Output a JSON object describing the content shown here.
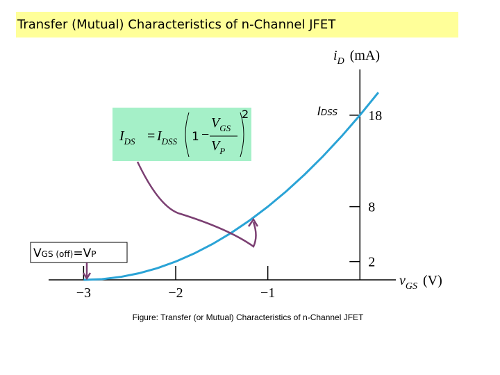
{
  "title": "Transfer (Mutual) Characteristics of n-Channel JFET",
  "chart_data": {
    "type": "line",
    "x": [
      -3,
      -2.8,
      -2.6,
      -2.4,
      -2.2,
      -2,
      -1.8,
      -1.6,
      -1.4,
      -1.2,
      -1,
      -0.8,
      -0.6,
      -0.4,
      -0.2,
      0,
      0.2
    ],
    "series": [
      {
        "color": "#2aa3d6",
        "values": [
          0,
          0.08,
          0.32,
          0.72,
          1.28,
          2,
          2.88,
          3.92,
          5.12,
          6.48,
          8,
          9.68,
          11.52,
          13.52,
          15.68,
          18,
          20.48
        ]
      }
    ],
    "xlim": [
      -3.38,
      0.39
    ],
    "ylim": [
      0,
      23
    ],
    "xticks": [
      {
        "value": -3,
        "label": "−3"
      },
      {
        "value": -2,
        "label": "−2"
      },
      {
        "value": -1,
        "label": "−1"
      }
    ],
    "yticks": [
      2,
      8,
      18
    ],
    "x_axis_label": {
      "symbol": "v",
      "subscript": "GS",
      "unit": "(V)"
    },
    "y_axis_label": {
      "symbol": "i",
      "subscript": "D",
      "unit": "(mA)"
    },
    "idss_label": {
      "symbol": "I",
      "subscript": "DSS"
    },
    "vgs_off_label": {
      "symbol": "V",
      "subscript": "GS (off)",
      "equals": "=V",
      "subscript2": "P"
    },
    "formula": {
      "lhs": "I",
      "lhs_sub": "DS",
      "equals": "=",
      "rhs": "I",
      "rhs_sub": "DSS",
      "one": "1",
      "minus": "−",
      "num": "V",
      "num_sub": "GS",
      "den": "V",
      "den_sub": "P",
      "exponent": "2"
    },
    "caption": "Figure: Transfer (or Mutual) Characteristics of n-Channel JFET"
  }
}
